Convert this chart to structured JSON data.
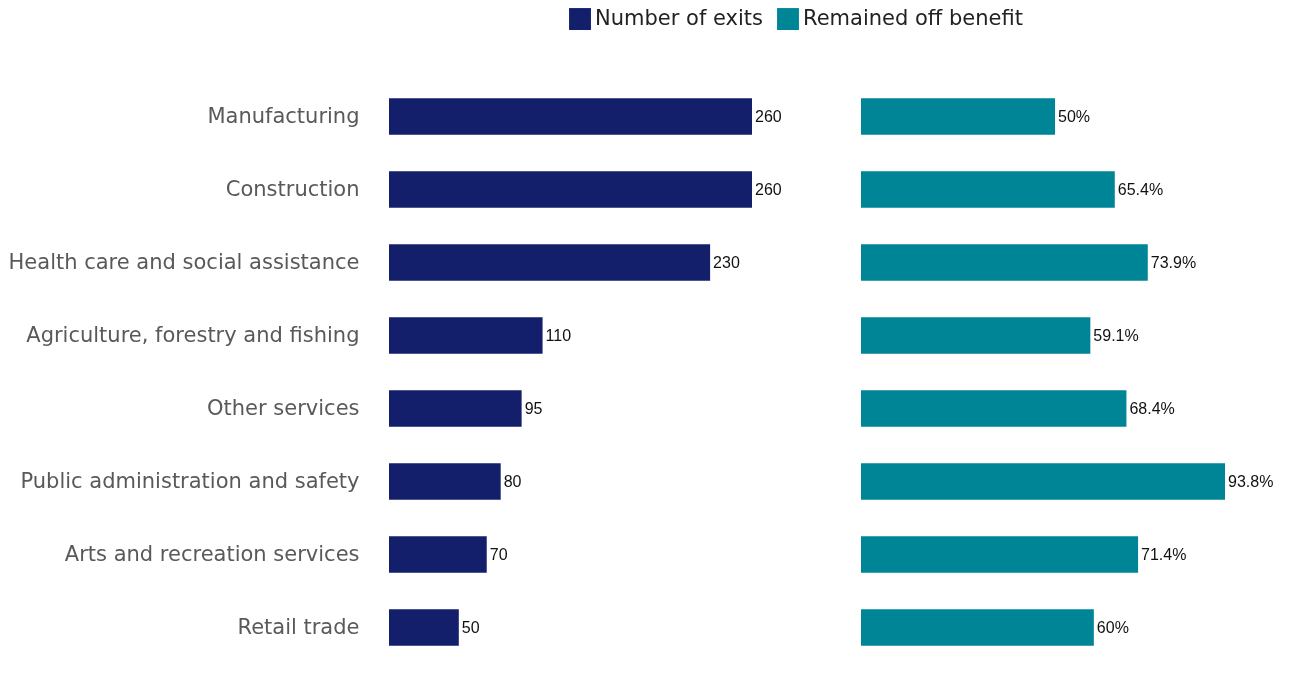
{
  "chart_data": [
    {
      "type": "bar",
      "orientation": "horizontal",
      "categories": [
        "Manufacturing",
        "Construction",
        "Health care and social assistance",
        "Agriculture, forestry and fishing",
        "Other services",
        "Public administration and safety",
        "Arts and recreation services",
        "Retail trade"
      ],
      "series": [
        {
          "name": "Number of exits",
          "color": "#141f6b",
          "values": [
            260,
            260,
            230,
            110,
            95,
            80,
            70,
            50
          ]
        }
      ],
      "data_labels": true,
      "legend": "top",
      "tick_labels": "y"
    },
    {
      "type": "bar",
      "orientation": "horizontal",
      "categories": [
        null,
        null,
        null,
        null,
        null,
        null,
        null,
        null
      ],
      "series": [
        {
          "name": "Remained off benefit",
          "color": "#008596",
          "values": [
            50,
            65.4,
            73.9,
            59.1,
            68.4,
            93.8,
            71.4,
            60
          ],
          "value_labels": [
            "50%",
            "65.4%",
            "73.9%",
            "59.1%",
            "68.4%",
            "93.8%",
            "71.4%",
            "60%"
          ]
        }
      ],
      "tick_labels": false
    }
  ]
}
